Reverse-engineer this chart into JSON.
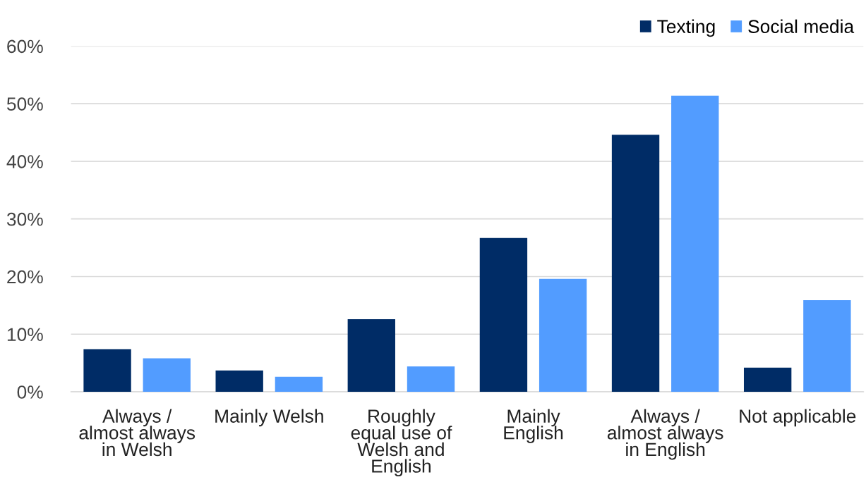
{
  "chart_data": {
    "type": "bar",
    "categories": [
      "Always / almost always in Welsh",
      "Mainly Welsh",
      "Roughly equal use of Welsh and English",
      "Mainly English",
      "Always / almost always in English",
      "Not applicable"
    ],
    "series": [
      {
        "name": "Texting",
        "color": "#002c66",
        "values": [
          7.4,
          3.7,
          12.6,
          26.7,
          44.6,
          4.2
        ]
      },
      {
        "name": "Social media",
        "color": "#529cff",
        "values": [
          5.8,
          2.6,
          4.4,
          19.6,
          51.4,
          15.9
        ]
      }
    ],
    "ylim": [
      0,
      60
    ],
    "yticks": [
      {
        "value": 0,
        "label": "0%"
      },
      {
        "value": 10,
        "label": "10%"
      },
      {
        "value": 20,
        "label": "20%"
      },
      {
        "value": 30,
        "label": "30%"
      },
      {
        "value": 40,
        "label": "40%"
      },
      {
        "value": 50,
        "label": "50%"
      },
      {
        "value": 60,
        "label": "60%"
      }
    ],
    "grid": "y",
    "legend": "top right"
  }
}
